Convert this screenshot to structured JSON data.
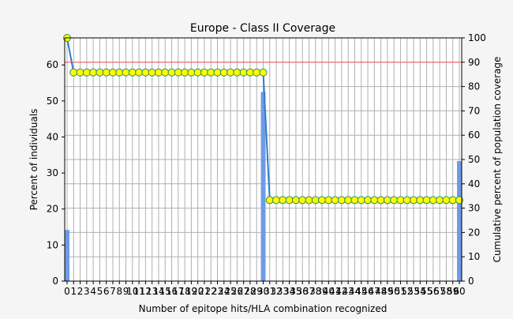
{
  "chart_data": {
    "type": "bar",
    "title": "Europe - Class II Coverage",
    "xlabel": "Number of epitope hits/HLA combination recognized",
    "ylabel": "Percent of individuals",
    "y2label": "Cumulative percent of population coverage",
    "xlim": [
      0,
      60
    ],
    "ylim": [
      0,
      67.5
    ],
    "y2lim": [
      0,
      100
    ],
    "yticks": [
      0,
      10,
      20,
      30,
      40,
      50,
      60
    ],
    "y2ticks": [
      0,
      10,
      20,
      30,
      40,
      50,
      60,
      70,
      80,
      90,
      100
    ],
    "grid": true,
    "colors": {
      "bar": "#6f9be6",
      "line": "#2f7fc8",
      "marker_fill": "#ffff00",
      "marker_edge": "#2e8b57",
      "threshold": "#ff6060",
      "grid": "#b0b0b0"
    },
    "bars": [
      {
        "x": 0,
        "value": 14.2
      },
      {
        "x": 30,
        "value": 52.5
      },
      {
        "x": 60,
        "value": 33.3
      }
    ],
    "threshold_y2": 90,
    "cumulative": {
      "series": [
        {
          "from": 0,
          "to": 0,
          "value": 100
        },
        {
          "from": 1,
          "to": 30,
          "value": 85.8
        },
        {
          "from": 31,
          "to": 60,
          "value": 33.3
        }
      ]
    }
  }
}
